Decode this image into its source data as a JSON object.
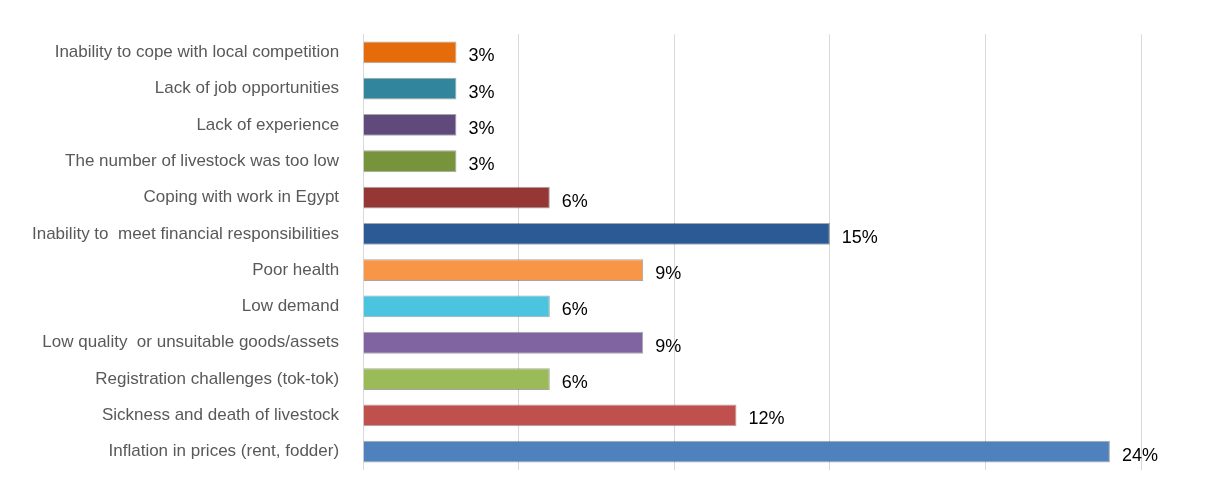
{
  "chart_data": {
    "type": "bar",
    "orientation": "horizontal",
    "categories": [
      "Inability to cope with local competition",
      "Lack of job opportunities",
      "Lack of experience",
      "The number of livestock was too low",
      "Coping with work in Egypt",
      "Inability to  meet financial responsibilities",
      "Poor health",
      "Low demand",
      "Low quality  or unsuitable goods/assets",
      "Registration challenges (tok-tok)",
      "Sickness and death of livestock",
      "Inflation in prices (rent, fodder)"
    ],
    "values": [
      3,
      3,
      3,
      3,
      6,
      15,
      9,
      6,
      9,
      6,
      12,
      24
    ],
    "value_labels": [
      "3%",
      "3%",
      "3%",
      "3%",
      "6%",
      "15%",
      "9%",
      "6%",
      "9%",
      "6%",
      "12%",
      "24%"
    ],
    "colors": [
      "#e46c0a",
      "#31859c",
      "#604a7b",
      "#77933c",
      "#953735",
      "#2c5a94",
      "#f79646",
      "#4bc4e0",
      "#8064a2",
      "#9bbb59",
      "#c0504d",
      "#4f81bd"
    ],
    "xlim": [
      0,
      25
    ],
    "xticks": [
      {
        "value": 0,
        "label": null
      },
      {
        "value": 5,
        "label": null
      },
      {
        "value": 10,
        "label": null
      },
      {
        "value": 15,
        "label": null
      },
      {
        "value": 20,
        "label": null
      },
      {
        "value": 25,
        "label": null
      }
    ],
    "grid": "x",
    "legend": false,
    "tick_labels": "y"
  }
}
